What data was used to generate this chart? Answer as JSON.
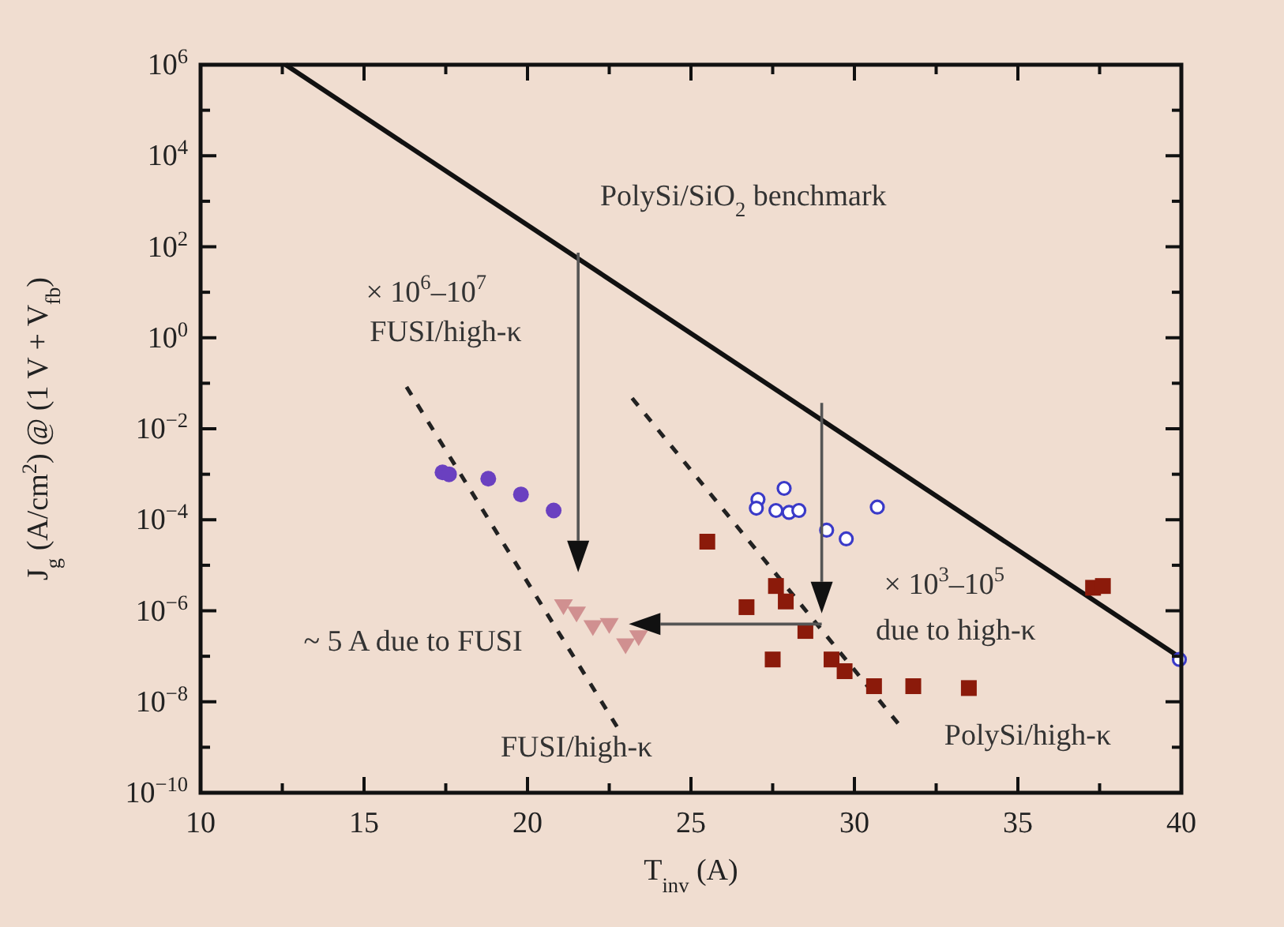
{
  "chart_data": {
    "type": "scatter",
    "xlabel": "T$_{inv}$ (A)",
    "ylabel": "J$_{g}$ (A/cm$^{2}$) @ (1 V + V$_{fb}$)",
    "log": "y",
    "grid": false,
    "xlim": [
      10,
      40
    ],
    "ylim": [
      1e-10,
      1000000.0
    ],
    "xticks": [
      10,
      {
        "value": 12.5,
        "label": null
      },
      15,
      {
        "value": 17.5,
        "label": null
      },
      20,
      {
        "value": 22.5,
        "label": null
      },
      25,
      {
        "value": 27.5,
        "label": null
      },
      30,
      {
        "value": 32.5,
        "label": null
      },
      35,
      {
        "value": 37.5,
        "label": null
      },
      40
    ],
    "yticks": [
      {
        "value": 1e-10,
        "label": "10$^{−10}$"
      },
      {
        "value": 1e-09,
        "label": null
      },
      {
        "value": 1e-08,
        "label": "10$^{−8}$"
      },
      {
        "value": 1e-07,
        "label": null
      },
      {
        "value": 1e-06,
        "label": "10$^{−6}$"
      },
      {
        "value": 1e-05,
        "label": null
      },
      {
        "value": 0.0001,
        "label": "10$^{−4}$"
      },
      {
        "value": 0.001,
        "label": null
      },
      {
        "value": 0.01,
        "label": "10$^{−2}$"
      },
      {
        "value": 0.1,
        "label": null
      },
      {
        "value": 1,
        "label": "10$^{0}$"
      },
      {
        "value": 10,
        "label": null
      },
      {
        "value": 100,
        "label": "10$^{2}$"
      },
      {
        "value": 1000,
        "label": null
      },
      {
        "value": 10000,
        "label": "10$^{4}$"
      },
      {
        "value": 100000,
        "label": null
      },
      {
        "value": 1000000,
        "label": "10$^{6}$"
      }
    ],
    "series": [
      {
        "type": "line",
        "color": "#111111",
        "line_style": "solid",
        "x": [
          12.6,
          40
        ],
        "values": [
          1000000,
          9e-08
        ]
      },
      {
        "type": "line",
        "color": "#222222",
        "line_style": "dashed",
        "x": [
          16.3,
          22.8
        ],
        "values": [
          0.083,
          2.4e-09
        ]
      },
      {
        "type": "line",
        "color": "#222222",
        "line_style": "dashed",
        "x": [
          23.2,
          31.5
        ],
        "values": [
          0.047,
          2.4e-09
        ]
      },
      {
        "color": "#6a40c0",
        "marker": "circle",
        "x": [
          17.4,
          17.6,
          18.8,
          19.8,
          20.8
        ],
        "values": [
          0.0011,
          0.001,
          0.0008,
          0.00036,
          0.00016
        ]
      },
      {
        "color": "#d09090",
        "marker": "triangle",
        "x": [
          21.1,
          21.5,
          22.0,
          22.5,
          23.0,
          23.4
        ],
        "values": [
          1.3e-06,
          9e-07,
          4.5e-07,
          5e-07,
          1.8e-07,
          2.7e-07
        ]
      },
      {
        "color": "#8b1a0a",
        "marker": "square",
        "x": [
          25.5,
          27.6,
          27.9,
          26.7,
          28.5,
          27.5,
          29.3,
          29.7,
          30.6,
          31.8,
          33.5,
          37.3,
          37.6
        ],
        "values": [
          3.3e-05,
          3.5e-06,
          1.6e-06,
          1.2e-06,
          3.6e-07,
          8.5e-08,
          8.5e-08,
          4.7e-08,
          2.2e-08,
          2.2e-08,
          2e-08,
          3.2e-06,
          3.5e-06
        ]
      },
      {
        "color": "#3a3ac8",
        "marker": "open-circle",
        "x": [
          27.05,
          27.85,
          27.0,
          27.6,
          28.0,
          28.3,
          30.7,
          29.15,
          29.75,
          39.94
        ],
        "values": [
          0.00028,
          0.00049,
          0.00018,
          0.00016,
          0.000145,
          0.00016,
          0.00019,
          5.9e-05,
          3.8e-05,
          8.5e-08
        ]
      }
    ],
    "annotations": [
      "PolySi/SiO$_{2}$ benchmark",
      "× 10$^{6}$–10$^{7}$",
      "FUSI/high-κ",
      "~ 5 A due to FUSI",
      "FUSI/high-κ",
      "× 10$^{3}$–10$^{5}$",
      "due to high-κ",
      "PolySi/high-κ"
    ]
  }
}
